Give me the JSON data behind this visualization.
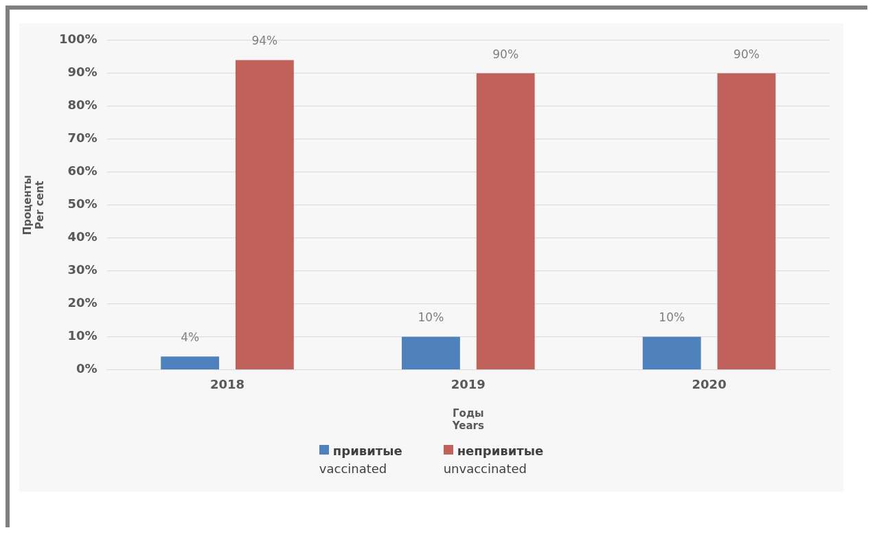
{
  "chart_data": {
    "type": "bar",
    "xlabel": "Годы\nYears",
    "ylabel": "Проценты\nPer cent",
    "categories": [
      "2018",
      "2019",
      "2020"
    ],
    "series": [
      {
        "name": "привитые\nvaccinated",
        "color": "#4f81bd",
        "values": [
          4,
          10,
          10
        ],
        "value_labels": [
          "4%",
          "10%",
          "10%"
        ]
      },
      {
        "name": "непривитые\nunvaccinated",
        "color": "#c0625b",
        "values": [
          94,
          90,
          90
        ],
        "value_labels": [
          "94%",
          "90%",
          "90%"
        ]
      }
    ],
    "ylim": [
      0,
      100
    ],
    "yticks": [
      {
        "value": 0,
        "label": "0%"
      },
      {
        "value": 10,
        "label": "10%"
      },
      {
        "value": 20,
        "label": "20%"
      },
      {
        "value": 30,
        "label": "30%"
      },
      {
        "value": 40,
        "label": "40%"
      },
      {
        "value": 50,
        "label": "50%"
      },
      {
        "value": 60,
        "label": "60%"
      },
      {
        "value": 70,
        "label": "70%"
      },
      {
        "value": 80,
        "label": "80%"
      },
      {
        "value": 90,
        "label": "90%"
      },
      {
        "value": 100,
        "label": "100%"
      }
    ],
    "grid": "y",
    "legend": "bottom"
  }
}
